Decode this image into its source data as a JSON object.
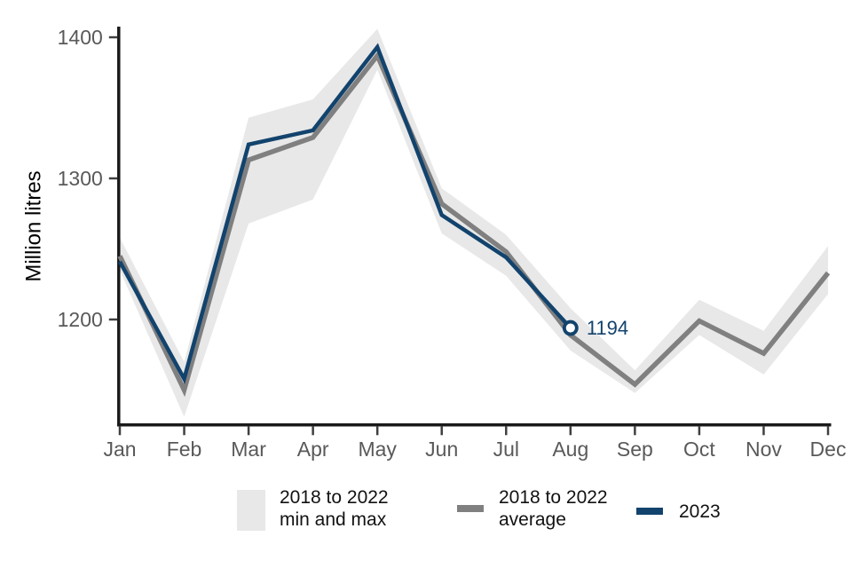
{
  "chart_data": {
    "type": "line",
    "title": "",
    "ylabel": "Million litres",
    "categories": [
      "Jan",
      "Feb",
      "Mar",
      "Apr",
      "May",
      "Jun",
      "Jul",
      "Aug",
      "Sep",
      "Oct",
      "Nov",
      "Dec"
    ],
    "yticks": [
      "1200",
      "1300",
      "1400"
    ],
    "ylim": [
      1125,
      1410
    ],
    "grid": false,
    "legend_position": "bottom",
    "band": {
      "name": "2018 to 2022 min and max",
      "min": [
        1235,
        1131,
        1268,
        1285,
        1377,
        1261,
        1231,
        1178,
        1148,
        1189,
        1161,
        1218
      ],
      "max": [
        1258,
        1170,
        1343,
        1356,
        1406,
        1293,
        1260,
        1208,
        1164,
        1214,
        1192,
        1252
      ]
    },
    "series": [
      {
        "name": "2018 to 2022 average",
        "values": [
          1245,
          1150,
          1313,
          1329,
          1387,
          1282,
          1248,
          1189,
          1154,
          1199,
          1176,
          1233
        ]
      },
      {
        "name": "2023",
        "values": [
          1241,
          1158,
          1324,
          1334,
          1393,
          1274,
          1244,
          1194
        ]
      }
    ],
    "annotation": {
      "series": "2023",
      "category": "Aug",
      "value": 1194,
      "label": "1194"
    },
    "legend": [
      {
        "swatch": "band",
        "label": "2018 to 2022\nmin and max"
      },
      {
        "swatch": "line",
        "label": "2018 to 2022\naverage"
      },
      {
        "swatch": "line",
        "label": "2023"
      }
    ],
    "colors": {
      "band": "#E8E8E8",
      "average": "#808080",
      "current": "#12436D",
      "axis": "#1a1a1a",
      "tick": "#404040",
      "tick_text": "#595959",
      "legend_text": "#121212"
    }
  }
}
